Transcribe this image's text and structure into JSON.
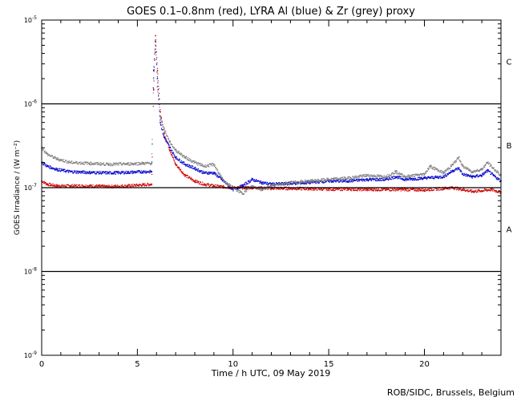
{
  "chart_data": {
    "type": "scatter",
    "title": "GOES 0.1–0.8nm (red), LYRA Al (blue) & Zr (grey) proxy",
    "xlabel": "Time / h UTC, 09 May 2019",
    "ylabel": "GOES Irradiance / (W m⁻²)",
    "xlim": [
      0,
      24
    ],
    "ylim": [
      1e-09,
      1e-05
    ],
    "yscale": "log",
    "x_ticks": [
      0,
      5,
      10,
      15,
      20
    ],
    "y_tick_labels": [
      {
        "base": "10",
        "exp": "-5",
        "value": 1e-05
      },
      {
        "base": "10",
        "exp": "-6",
        "value": 1e-06
      },
      {
        "base": "10",
        "exp": "-7",
        "value": 1e-07
      },
      {
        "base": "10",
        "exp": "-8",
        "value": 1e-08
      },
      {
        "base": "10",
        "exp": "-9",
        "value": 1e-09
      }
    ],
    "class_lines": [
      1e-06,
      1e-07,
      1e-08
    ],
    "class_labels": [
      {
        "label": "C",
        "value": 3.2e-06
      },
      {
        "label": "B",
        "value": 3.2e-07
      },
      {
        "label": "A",
        "value": 3.2e-08
      }
    ],
    "grid": false,
    "series": [
      {
        "name": "GOES 0.1–0.8nm",
        "color": "#d00000",
        "x": [
          0,
          0.3,
          0.8,
          1.5,
          2.5,
          3.5,
          4.5,
          5.3,
          5.75,
          5.85,
          5.95,
          6.05,
          6.2,
          6.4,
          6.7,
          7.0,
          7.5,
          8.0,
          8.5,
          9.0,
          9.5,
          10.0,
          11.0,
          12.0,
          13.0,
          14.0,
          15.0,
          16.0,
          17.0,
          18.0,
          19.0,
          20.0,
          21.0,
          21.5,
          22.0,
          22.5,
          23.0,
          23.5,
          24.0
        ],
        "y": [
          1.2e-07,
          1.1e-07,
          1.05e-07,
          1.05e-07,
          1.05e-07,
          1.03e-07,
          1.05e-07,
          1.08e-07,
          1.1e-07,
          1.5e-06,
          6.5e-06,
          2.5e-06,
          8e-07,
          4.5e-07,
          2.8e-07,
          1.9e-07,
          1.4e-07,
          1.2e-07,
          1.1e-07,
          1.05e-07,
          1.02e-07,
          1e-07,
          1e-07,
          9.8e-08,
          9.8e-08,
          9.7e-08,
          9.6e-08,
          9.6e-08,
          9.5e-08,
          9.5e-08,
          9.5e-08,
          9.4e-08,
          9.8e-08,
          1e-07,
          9.5e-08,
          9e-08,
          9.2e-08,
          9.5e-08,
          8.8e-08
        ]
      },
      {
        "name": "LYRA Al",
        "color": "#0000cc",
        "x": [
          0,
          0.3,
          0.8,
          1.5,
          2.5,
          3.5,
          4.5,
          5.3,
          5.75,
          5.85,
          5.95,
          6.05,
          6.2,
          6.4,
          6.7,
          7.0,
          7.5,
          8.0,
          8.5,
          9.0,
          9.5,
          10.0,
          10.5,
          11.0,
          11.5,
          12.0,
          13.0,
          14.0,
          15.0,
          16.0,
          17.0,
          18.0,
          18.5,
          19.0,
          20.0,
          21.0,
          21.5,
          21.8,
          22.0,
          22.5,
          23.0,
          23.3,
          23.6,
          24.0
        ],
        "y": [
          2e-07,
          1.8e-07,
          1.65e-07,
          1.55e-07,
          1.52e-07,
          1.5e-07,
          1.52e-07,
          1.55e-07,
          1.55e-07,
          2.5e-06,
          5.5e-06,
          2e-06,
          6e-07,
          4e-07,
          3e-07,
          2.3e-07,
          1.9e-07,
          1.7e-07,
          1.5e-07,
          1.5e-07,
          1.2e-07,
          9.5e-08,
          1.05e-07,
          1.25e-07,
          1.15e-07,
          1.1e-07,
          1.12e-07,
          1.15e-07,
          1.2e-07,
          1.2e-07,
          1.25e-07,
          1.25e-07,
          1.35e-07,
          1.25e-07,
          1.3e-07,
          1.35e-07,
          1.6e-07,
          1.7e-07,
          1.45e-07,
          1.35e-07,
          1.4e-07,
          1.6e-07,
          1.4e-07,
          1.2e-07
        ]
      },
      {
        "name": "Zr",
        "color": "#808080",
        "x": [
          0,
          0.3,
          0.8,
          1.5,
          2.5,
          3.5,
          4.5,
          5.3,
          5.75,
          5.85,
          5.95,
          6.05,
          6.2,
          6.4,
          6.7,
          7.0,
          7.5,
          8.0,
          8.5,
          9.0,
          9.5,
          10.0,
          10.5,
          11.0,
          11.5,
          12.0,
          13.0,
          14.0,
          15.0,
          16.0,
          17.0,
          18.0,
          18.5,
          19.0,
          20.0,
          20.3,
          21.0,
          21.5,
          21.8,
          22.0,
          22.5,
          23.0,
          23.3,
          23.6,
          24.0
        ],
        "y": [
          3e-07,
          2.5e-07,
          2.2e-07,
          2e-07,
          1.95e-07,
          1.9e-07,
          1.92e-07,
          1.95e-07,
          1.95e-07,
          2e-06,
          5e-06,
          1.6e-06,
          7e-07,
          5e-07,
          3.5e-07,
          2.8e-07,
          2.3e-07,
          2e-07,
          1.8e-07,
          1.9e-07,
          1.2e-07,
          1e-07,
          8.5e-08,
          1.05e-07,
          9.5e-08,
          1.05e-07,
          1.15e-07,
          1.2e-07,
          1.25e-07,
          1.3e-07,
          1.4e-07,
          1.35e-07,
          1.55e-07,
          1.35e-07,
          1.45e-07,
          1.8e-07,
          1.5e-07,
          1.9e-07,
          2.3e-07,
          1.8e-07,
          1.55e-07,
          1.65e-07,
          2e-07,
          1.7e-07,
          1.4e-07
        ]
      }
    ]
  },
  "credit": "ROB/SIDC, Brussels, Belgium"
}
